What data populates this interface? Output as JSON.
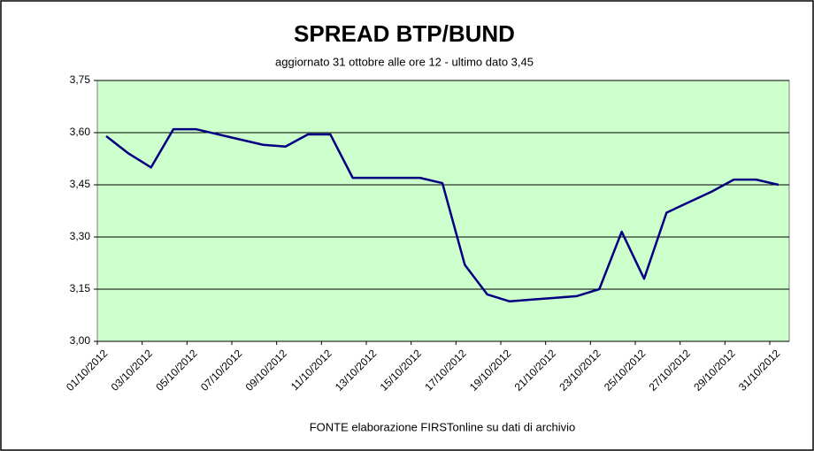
{
  "chart_data": {
    "type": "line",
    "title": "SPREAD  BTP/BUND",
    "subtitle": "aggiornato 31 ottobre alle ore 12 - ultimo dato 3,45",
    "source": "FONTE elaborazione FIRSTonline su dati di archivio",
    "categories": [
      "01/10/2012",
      null,
      "03/10/2012",
      null,
      "05/10/2012",
      null,
      "07/10/2012",
      null,
      "09/10/2012",
      null,
      "11/10/2012",
      null,
      "13/10/2012",
      null,
      "15/10/2012",
      null,
      "17/10/2012",
      null,
      "19/10/2012",
      null,
      "21/10/2012",
      null,
      "23/10/2012",
      null,
      "25/10/2012",
      null,
      "27/10/2012",
      null,
      "29/10/2012",
      null,
      "31/10/2012"
    ],
    "series": [
      {
        "name": "spread",
        "color": "#000080",
        "values": [
          3.59,
          3.54,
          3.5,
          3.61,
          3.61,
          3.595,
          3.58,
          3.565,
          3.56,
          3.595,
          3.595,
          3.47,
          3.47,
          3.47,
          3.47,
          3.455,
          3.22,
          3.135,
          3.115,
          3.12,
          3.125,
          3.13,
          3.15,
          3.315,
          3.18,
          3.37,
          3.4,
          3.43,
          3.465,
          3.465,
          3.45
        ]
      }
    ],
    "ylim": [
      3.0,
      3.75
    ],
    "yticks": [
      {
        "value": 3.0,
        "label": "3,00"
      },
      {
        "value": 3.15,
        "label": "3,15"
      },
      {
        "value": 3.3,
        "label": "3,30"
      },
      {
        "value": 3.45,
        "label": "3,45"
      },
      {
        "value": 3.6,
        "label": "3,60"
      },
      {
        "value": 3.75,
        "label": "3,75"
      }
    ],
    "grid": true,
    "plot_color": "#ccffcc"
  }
}
